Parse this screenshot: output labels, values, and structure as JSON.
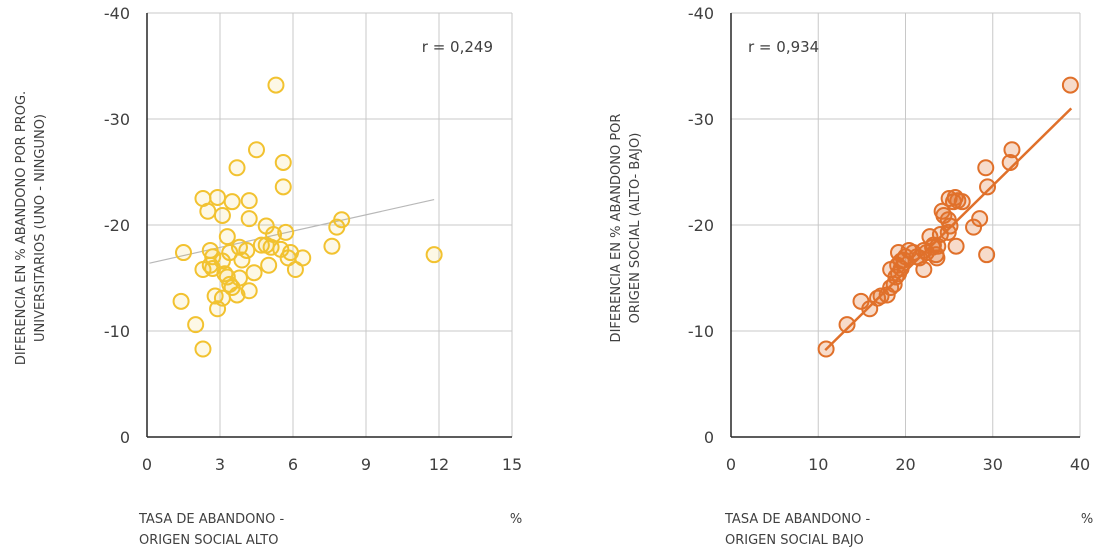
{
  "chart_data": [
    {
      "type": "scatter",
      "title": "",
      "xlabel_lines": [
        "TASA DE ABANDONO -",
        "ORIGEN SOCIAL ALTO"
      ],
      "x_unit": "%",
      "ylabel_lines": [
        "DIFERENCIA EN % ABANDONO POR PROG.",
        "UNIVERSITARIOS (UNO  - NINGUNO)"
      ],
      "annotation": "r = 0,249",
      "xlim": [
        0,
        15
      ],
      "ylim": [
        0,
        -40
      ],
      "xticks": [
        0,
        3,
        6,
        9,
        12,
        15
      ],
      "yticks": [
        0,
        -10,
        -20,
        -30,
        -40
      ],
      "xtick_labels": [
        "0",
        "3",
        "6",
        "9",
        "12",
        "15"
      ],
      "ytick_labels": [
        "0",
        "-10",
        "-20",
        "-30",
        "-40"
      ],
      "grid": true,
      "marker_color": "#f2c230",
      "trend_color": "#b8b8b8",
      "trendline": [
        [
          0.1,
          -16.4
        ],
        [
          11.8,
          -22.4
        ]
      ],
      "points": [
        [
          1.4,
          -12.8
        ],
        [
          1.5,
          -17.4
        ],
        [
          2.0,
          -10.6
        ],
        [
          2.3,
          -8.3
        ],
        [
          2.3,
          -15.8
        ],
        [
          2.3,
          -22.5
        ],
        [
          2.5,
          -21.3
        ],
        [
          2.6,
          -17.6
        ],
        [
          2.6,
          -16.2
        ],
        [
          2.7,
          -17.0
        ],
        [
          2.7,
          -15.9
        ],
        [
          2.8,
          -13.3
        ],
        [
          2.9,
          -22.6
        ],
        [
          2.9,
          -12.1
        ],
        [
          3.1,
          -16.6
        ],
        [
          3.1,
          -13.1
        ],
        [
          3.1,
          -20.9
        ],
        [
          3.2,
          -15.4
        ],
        [
          3.3,
          -18.9
        ],
        [
          3.3,
          -15.1
        ],
        [
          3.4,
          -14.4
        ],
        [
          3.4,
          -17.4
        ],
        [
          3.5,
          -22.2
        ],
        [
          3.5,
          -14.1
        ],
        [
          3.7,
          -25.4
        ],
        [
          3.7,
          -13.4
        ],
        [
          3.8,
          -15.0
        ],
        [
          3.8,
          -17.9
        ],
        [
          3.9,
          -16.7
        ],
        [
          4.1,
          -17.6
        ],
        [
          4.2,
          -22.3
        ],
        [
          4.2,
          -20.6
        ],
        [
          4.2,
          -13.8
        ],
        [
          4.4,
          -15.5
        ],
        [
          4.5,
          -27.1
        ],
        [
          4.7,
          -18.1
        ],
        [
          4.9,
          -19.9
        ],
        [
          4.9,
          -18.1
        ],
        [
          5.0,
          -16.2
        ],
        [
          5.1,
          -17.9
        ],
        [
          5.3,
          -33.2
        ],
        [
          5.2,
          -19.1
        ],
        [
          5.5,
          -17.7
        ],
        [
          5.6,
          -25.9
        ],
        [
          5.6,
          -23.6
        ],
        [
          5.7,
          -19.3
        ],
        [
          5.8,
          -16.9
        ],
        [
          5.9,
          -17.4
        ],
        [
          6.1,
          -15.8
        ],
        [
          6.4,
          -16.9
        ],
        [
          7.6,
          -18.0
        ],
        [
          7.8,
          -19.8
        ],
        [
          8.0,
          -20.5
        ],
        [
          11.8,
          -17.2
        ]
      ]
    },
    {
      "type": "scatter",
      "title": "",
      "xlabel_lines": [
        "TASA DE ABANDONO -",
        "ORIGEN SOCIAL BAJO"
      ],
      "x_unit": "%",
      "ylabel_lines": [
        "DIFERENCIA EN % ABANDONO POR",
        "ORIGEN SOCIAL (ALTO- BAJO)"
      ],
      "annotation": "r = 0,934",
      "xlim": [
        0,
        40
      ],
      "ylim": [
        0,
        -40
      ],
      "xticks": [
        0,
        10,
        20,
        30,
        40
      ],
      "yticks": [
        0,
        -10,
        -20,
        -30,
        -40
      ],
      "xtick_labels": [
        "0",
        "10",
        "20",
        "30",
        "40"
      ],
      "ytick_labels": [
        "0",
        "-10",
        "-20",
        "-30",
        "-40"
      ],
      "grid": true,
      "marker_color": "#e0702a",
      "trend_color": "#e0702a",
      "trendline": [
        [
          10.8,
          -8.2
        ],
        [
          39.0,
          -31.0
        ]
      ],
      "points": [
        [
          10.9,
          -8.3
        ],
        [
          13.3,
          -10.6
        ],
        [
          14.9,
          -12.8
        ],
        [
          15.9,
          -12.1
        ],
        [
          16.8,
          -13.1
        ],
        [
          17.2,
          -13.3
        ],
        [
          17.9,
          -13.4
        ],
        [
          18.3,
          -14.1
        ],
        [
          18.7,
          -14.4
        ],
        [
          18.3,
          -15.8
        ],
        [
          18.9,
          -15.1
        ],
        [
          19.2,
          -15.4
        ],
        [
          19.1,
          -16.2
        ],
        [
          19.5,
          -15.9
        ],
        [
          19.5,
          -16.6
        ],
        [
          19.8,
          -16.7
        ],
        [
          19.2,
          -17.4
        ],
        [
          20.0,
          -17.0
        ],
        [
          20.4,
          -17.6
        ],
        [
          20.9,
          -17.4
        ],
        [
          21.3,
          -17.0
        ],
        [
          21.6,
          -16.9
        ],
        [
          22.1,
          -15.8
        ],
        [
          22.1,
          -17.6
        ],
        [
          22.4,
          -17.4
        ],
        [
          22.8,
          -18.9
        ],
        [
          23.1,
          -17.9
        ],
        [
          23.2,
          -18.1
        ],
        [
          23.5,
          -17.2
        ],
        [
          23.6,
          -16.9
        ],
        [
          23.7,
          -18.0
        ],
        [
          24.0,
          -19.1
        ],
        [
          24.2,
          -21.3
        ],
        [
          24.4,
          -20.9
        ],
        [
          24.9,
          -19.3
        ],
        [
          24.9,
          -20.5
        ],
        [
          25.0,
          -22.5
        ],
        [
          25.1,
          -19.9
        ],
        [
          25.5,
          -22.2
        ],
        [
          25.7,
          -22.6
        ],
        [
          25.8,
          -18.0
        ],
        [
          26.0,
          -22.3
        ],
        [
          26.5,
          -22.2
        ],
        [
          27.8,
          -19.8
        ],
        [
          28.5,
          -20.6
        ],
        [
          29.2,
          -25.4
        ],
        [
          29.3,
          -17.2
        ],
        [
          29.4,
          -23.6
        ],
        [
          32.0,
          -25.9
        ],
        [
          32.2,
          -27.1
        ],
        [
          38.9,
          -33.2
        ]
      ]
    }
  ]
}
